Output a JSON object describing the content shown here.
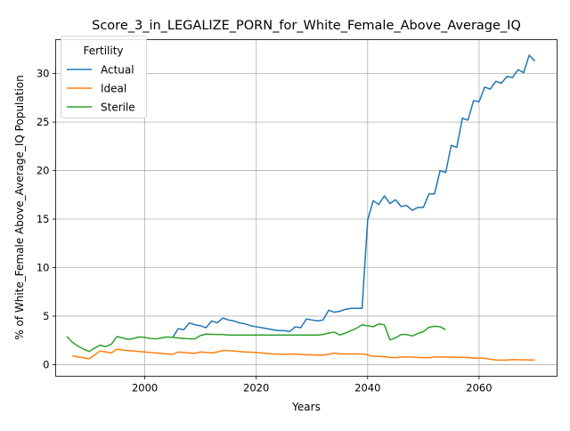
{
  "chart_data": {
    "type": "line",
    "title": "Score_3_in_LEGALIZE_PORN_for_White_Female_Above_Average_IQ",
    "xlabel": "Years",
    "ylabel": "% of White_Female Above_Average_IQ Population",
    "xlim": [
      1984,
      2074
    ],
    "ylim": [
      -1.2,
      33.5
    ],
    "xticks": [
      2000,
      2020,
      2040,
      2060
    ],
    "yticks": [
      0,
      5,
      10,
      15,
      20,
      25,
      30
    ],
    "grid": true,
    "legend": {
      "title": "Fertility",
      "placement": "upper left"
    },
    "series": [
      {
        "name": "Actual",
        "color": "#1f77b4",
        "x": [
          2005,
          2006,
          2007,
          2008,
          2009,
          2010,
          2011,
          2012,
          2013,
          2014,
          2015,
          2016,
          2017,
          2018,
          2019,
          2020,
          2021,
          2022,
          2023,
          2024,
          2025,
          2026,
          2027,
          2028,
          2029,
          2030,
          2031,
          2032,
          2033,
          2034,
          2035,
          2036,
          2037,
          2038,
          2039,
          2040,
          2041,
          2042,
          2043,
          2044,
          2045,
          2046,
          2047,
          2048,
          2049,
          2050,
          2051,
          2052,
          2053,
          2054,
          2055,
          2056,
          2057,
          2058,
          2059,
          2060,
          2061,
          2062,
          2063,
          2064,
          2065,
          2066,
          2067,
          2068,
          2069,
          2070
        ],
        "y": [
          2.8,
          3.7,
          3.6,
          4.3,
          4.1,
          4.0,
          3.8,
          4.5,
          4.3,
          4.8,
          4.6,
          4.5,
          4.3,
          4.2,
          4.0,
          3.9,
          3.8,
          3.7,
          3.6,
          3.5,
          3.5,
          3.4,
          3.9,
          3.8,
          4.7,
          4.6,
          4.5,
          4.6,
          5.6,
          5.4,
          5.5,
          5.7,
          5.8,
          5.8,
          5.8,
          14.9,
          16.9,
          16.5,
          17.4,
          16.6,
          17.0,
          16.3,
          16.4,
          15.9,
          16.2,
          16.2,
          17.6,
          17.6,
          20.0,
          19.8,
          22.6,
          22.4,
          25.4,
          25.2,
          27.2,
          27.1,
          28.6,
          28.4,
          29.2,
          29.0,
          29.7,
          29.6,
          30.4,
          30.1,
          31.9,
          31.3
        ]
      },
      {
        "name": "Ideal",
        "color": "#ff7f0e",
        "x": [
          1987,
          1988,
          1989,
          1990,
          1991,
          1992,
          1993,
          1994,
          1995,
          1996,
          1997,
          1998,
          1999,
          2000,
          2001,
          2002,
          2003,
          2004,
          2005,
          2006,
          2007,
          2008,
          2009,
          2010,
          2011,
          2012,
          2013,
          2014,
          2015,
          2016,
          2017,
          2018,
          2019,
          2020,
          2021,
          2022,
          2023,
          2024,
          2025,
          2026,
          2027,
          2028,
          2029,
          2030,
          2031,
          2032,
          2033,
          2034,
          2035,
          2036,
          2037,
          2038,
          2039,
          2040,
          2041,
          2042,
          2043,
          2044,
          2045,
          2046,
          2047,
          2048,
          2049,
          2050,
          2051,
          2052,
          2053,
          2054,
          2055,
          2056,
          2057,
          2058,
          2059,
          2060,
          2061,
          2062,
          2063,
          2064,
          2065,
          2066,
          2067,
          2068,
          2069,
          2070
        ],
        "y": [
          0.9,
          0.8,
          0.7,
          0.6,
          1.0,
          1.4,
          1.3,
          1.2,
          1.6,
          1.5,
          1.45,
          1.4,
          1.35,
          1.3,
          1.25,
          1.2,
          1.15,
          1.1,
          1.05,
          1.3,
          1.25,
          1.2,
          1.15,
          1.3,
          1.25,
          1.2,
          1.3,
          1.45,
          1.45,
          1.4,
          1.35,
          1.3,
          1.28,
          1.25,
          1.2,
          1.15,
          1.1,
          1.08,
          1.05,
          1.1,
          1.08,
          1.05,
          1.02,
          1.0,
          0.98,
          0.98,
          1.05,
          1.2,
          1.1,
          1.1,
          1.1,
          1.1,
          1.1,
          1.0,
          0.85,
          0.85,
          0.82,
          0.75,
          0.72,
          0.78,
          0.78,
          0.76,
          0.74,
          0.72,
          0.72,
          0.78,
          0.78,
          0.78,
          0.76,
          0.75,
          0.74,
          0.74,
          0.66,
          0.66,
          0.65,
          0.56,
          0.48,
          0.46,
          0.46,
          0.52,
          0.5,
          0.5,
          0.48,
          0.47
        ]
      },
      {
        "name": "Sterile",
        "color": "#2ca02c",
        "x": [
          1986,
          1987,
          1988,
          1989,
          1990,
          1991,
          1992,
          1993,
          1994,
          1995,
          1996,
          1997,
          1998,
          1999,
          2000,
          2001,
          2002,
          2003,
          2004,
          2005,
          2006,
          2007,
          2008,
          2009,
          2010,
          2011,
          2012,
          2013,
          2014,
          2015,
          2016,
          2017,
          2018,
          2019,
          2020,
          2021,
          2022,
          2023,
          2024,
          2025,
          2026,
          2027,
          2028,
          2029,
          2030,
          2031,
          2032,
          2033,
          2034,
          2035,
          2036,
          2037,
          2038,
          2039,
          2040,
          2041,
          2042,
          2043,
          2044,
          2045,
          2046,
          2047,
          2048,
          2049,
          2050,
          2051,
          2052,
          2053,
          2054
        ],
        "y": [
          2.9,
          2.3,
          1.9,
          1.6,
          1.35,
          1.7,
          2.0,
          1.85,
          2.1,
          2.9,
          2.75,
          2.6,
          2.7,
          2.85,
          2.8,
          2.7,
          2.65,
          2.75,
          2.85,
          2.8,
          2.75,
          2.7,
          2.65,
          2.65,
          3.0,
          3.15,
          3.12,
          3.1,
          3.1,
          3.05,
          3.05,
          3.05,
          3.05,
          3.05,
          3.05,
          3.05,
          3.05,
          3.05,
          3.05,
          3.05,
          3.05,
          3.05,
          3.05,
          3.05,
          3.05,
          3.05,
          3.1,
          3.25,
          3.35,
          3.05,
          3.25,
          3.5,
          3.75,
          4.1,
          4.0,
          3.9,
          4.2,
          4.1,
          2.55,
          2.75,
          3.1,
          3.1,
          2.95,
          3.2,
          3.4,
          3.85,
          3.95,
          3.9,
          3.6
        ]
      }
    ]
  }
}
